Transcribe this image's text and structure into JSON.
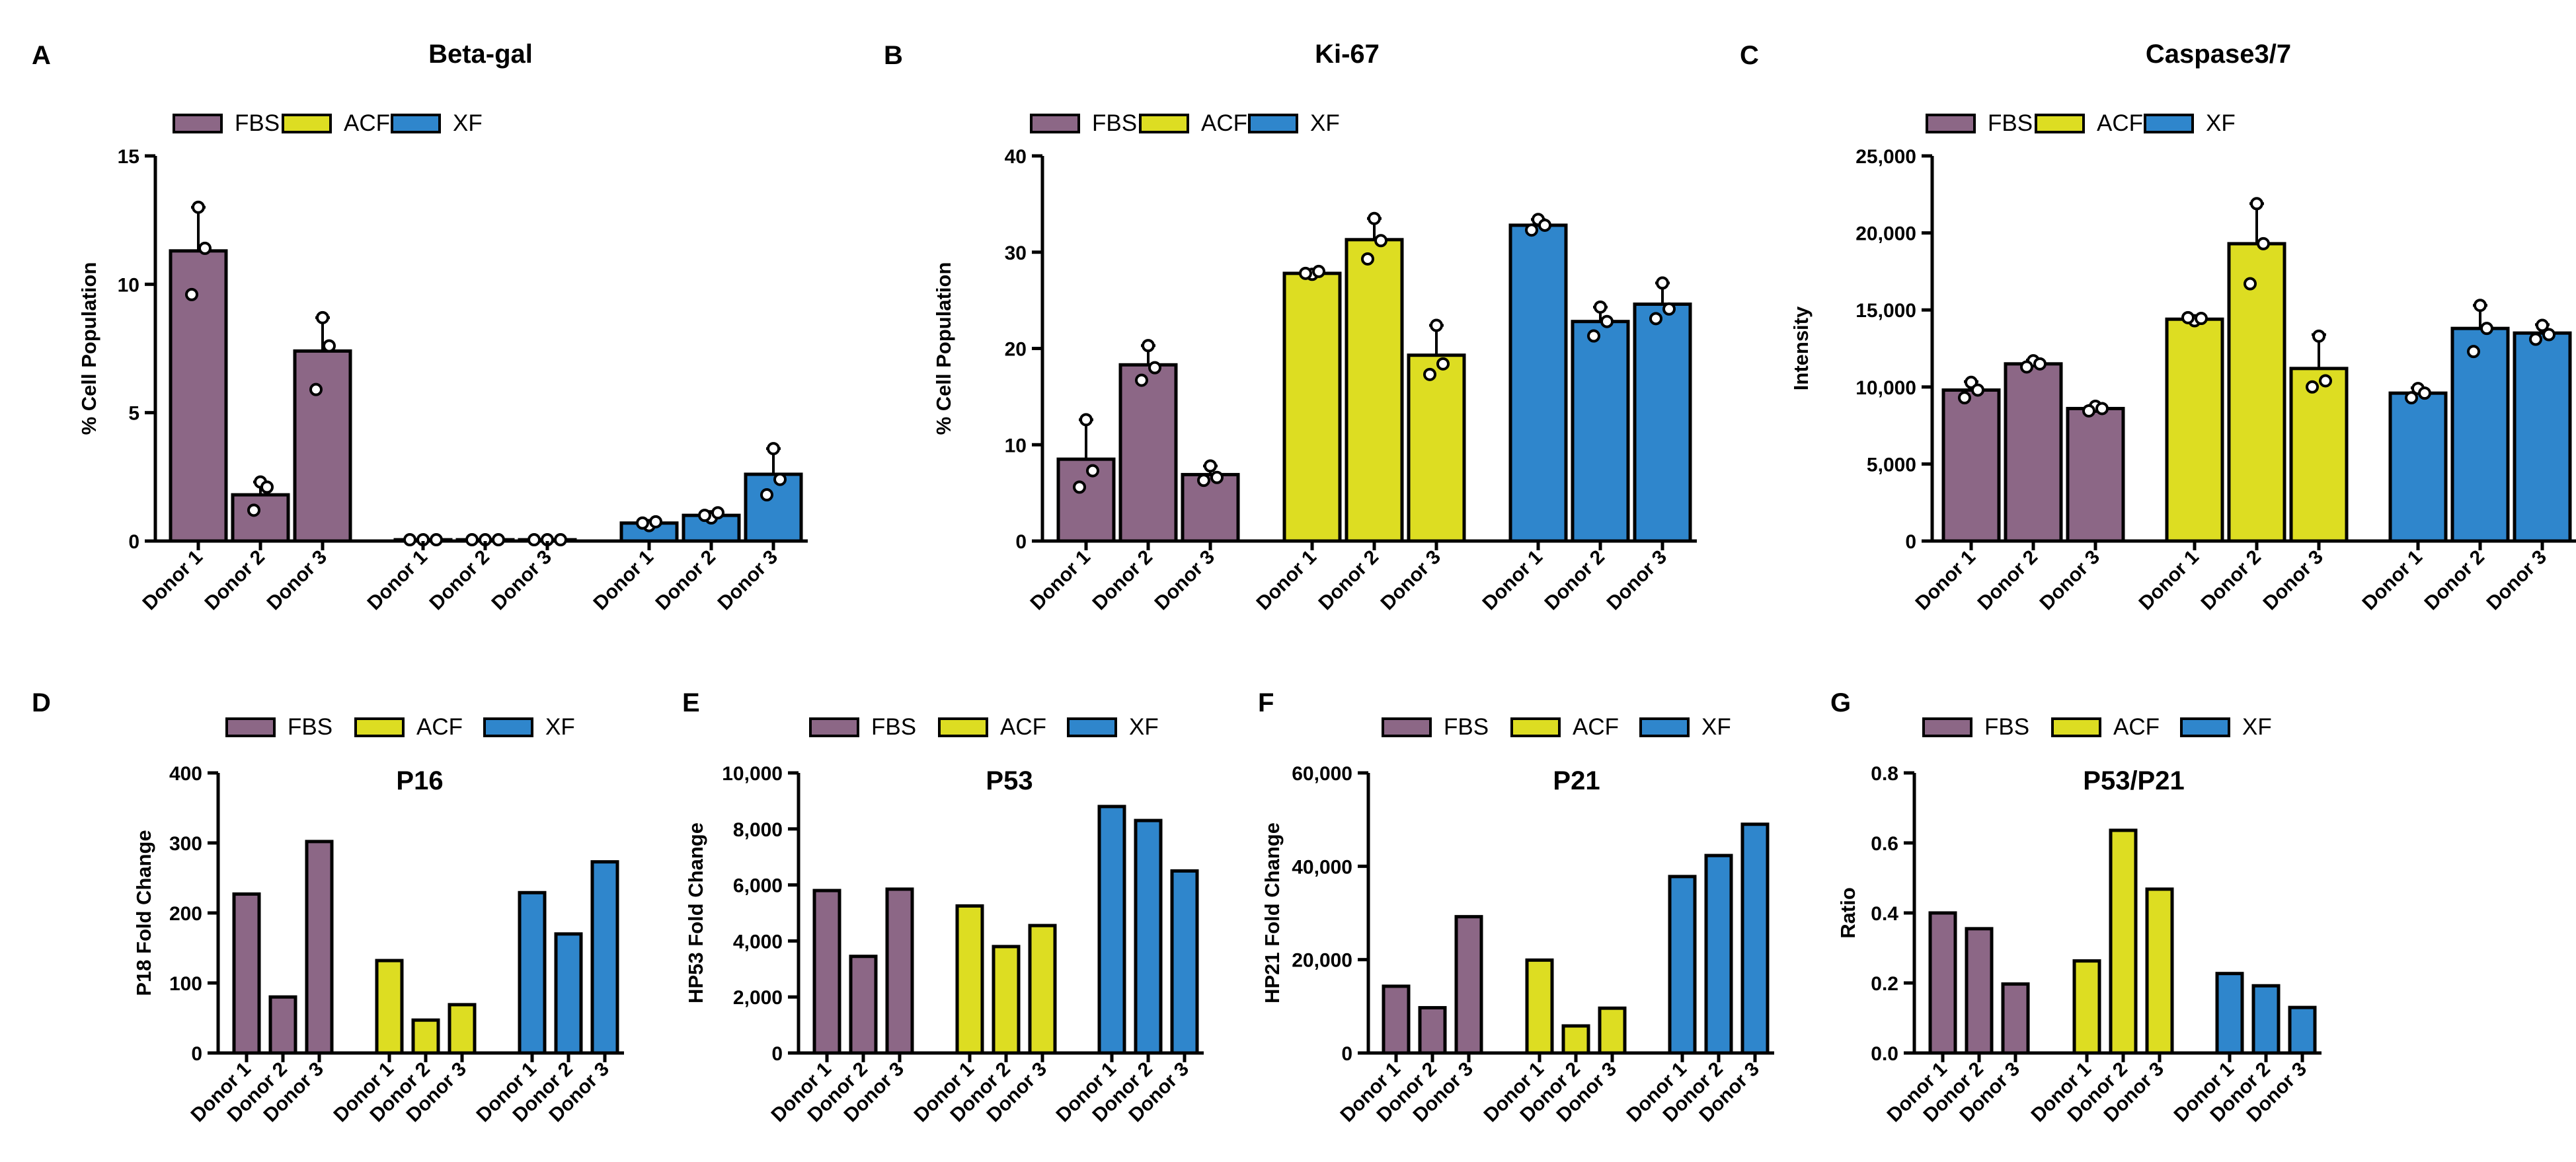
{
  "colors": {
    "FBS": "#8c6786",
    "ACF": "#dddd22",
    "XF": "#2f86cc"
  },
  "chart_data": [
    {
      "panel": "A",
      "type": "bar",
      "title": "Beta-gal",
      "xlabel": "",
      "ylabel": "% Cell Population",
      "legend": [
        "FBS",
        "ACF",
        "XF"
      ],
      "legend_position": "top-left",
      "categories": [
        "Donor 1",
        "Donor 2",
        "Donor 3"
      ],
      "ylim": [
        0,
        15
      ],
      "yticks": [
        0,
        5,
        10,
        15
      ],
      "ytick_labels": [
        "0",
        "5",
        "10",
        "15"
      ],
      "error_bars": true,
      "series": [
        {
          "name": "FBS",
          "values": [
            11.3,
            1.8,
            7.4
          ],
          "errors": [
            1.7,
            0.5,
            1.3
          ],
          "points": [
            [
              13.0,
              9.6,
              11.4
            ],
            [
              2.3,
              1.2,
              2.1
            ],
            [
              8.7,
              5.9,
              7.6
            ]
          ]
        },
        {
          "name": "ACF",
          "values": [
            0.05,
            0.05,
            0.05
          ],
          "errors": [
            0,
            0,
            0
          ],
          "points": [
            [
              0.05,
              0.05,
              0.05
            ],
            [
              0.05,
              0.05,
              0.05
            ],
            [
              0.05,
              0.05,
              0.05
            ]
          ]
        },
        {
          "name": "XF",
          "values": [
            0.7,
            1.0,
            2.6
          ],
          "errors": [
            0.1,
            0.15,
            1.0
          ],
          "points": [
            [
              0.6,
              0.7,
              0.75
            ],
            [
              0.9,
              1.0,
              1.1
            ],
            [
              3.6,
              1.8,
              2.4
            ]
          ]
        }
      ]
    },
    {
      "panel": "B",
      "type": "bar",
      "title": "Ki-67",
      "xlabel": "",
      "ylabel": "% Cell Population",
      "legend": [
        "FBS",
        "ACF",
        "XF"
      ],
      "legend_position": "top-left",
      "categories": [
        "Donor 1",
        "Donor 2",
        "Donor 3"
      ],
      "ylim": [
        0,
        40
      ],
      "yticks": [
        0,
        10,
        20,
        30,
        40
      ],
      "ytick_labels": [
        "0",
        "10",
        "20",
        "30",
        "40"
      ],
      "error_bars": true,
      "series": [
        {
          "name": "FBS",
          "values": [
            8.5,
            18.3,
            6.9
          ],
          "errors": [
            4.1,
            2.0,
            0.9
          ],
          "points": [
            [
              12.6,
              5.6,
              7.3
            ],
            [
              20.3,
              16.7,
              18.0
            ],
            [
              7.8,
              6.3,
              6.6
            ]
          ]
        },
        {
          "name": "ACF",
          "values": [
            27.8,
            31.3,
            19.3
          ],
          "errors": [
            0.3,
            2.2,
            3.1
          ],
          "points": [
            [
              27.7,
              27.8,
              28.0
            ],
            [
              33.5,
              29.3,
              31.2
            ],
            [
              22.4,
              17.3,
              18.4
            ]
          ]
        },
        {
          "name": "XF",
          "values": [
            32.8,
            22.8,
            24.6
          ],
          "errors": [
            0.6,
            1.5,
            2.2
          ],
          "points": [
            [
              33.4,
              32.3,
              32.8
            ],
            [
              24.3,
              21.3,
              22.8
            ],
            [
              26.8,
              23.1,
              24.1
            ]
          ]
        }
      ]
    },
    {
      "panel": "C",
      "type": "bar",
      "title": "Caspase3/7",
      "xlabel": "",
      "ylabel": "Intensity",
      "legend": [
        "FBS",
        "ACF",
        "XF"
      ],
      "legend_position": "top-left",
      "categories": [
        "Donor 1",
        "Donor 2",
        "Donor 3"
      ],
      "ylim": [
        0,
        25000
      ],
      "yticks": [
        0,
        5000,
        10000,
        15000,
        20000,
        25000
      ],
      "ytick_labels": [
        "0",
        "5,000",
        "10,000",
        "15,000",
        "20,000",
        "25,000"
      ],
      "error_bars": true,
      "series": [
        {
          "name": "FBS",
          "values": [
            9800,
            11500,
            8600
          ],
          "errors": [
            550,
            250,
            200
          ],
          "points": [
            [
              10300,
              9300,
              9800
            ],
            [
              11700,
              11300,
              11500
            ],
            [
              8750,
              8450,
              8600
            ]
          ]
        },
        {
          "name": "ACF",
          "values": [
            14400,
            19300,
            11200
          ],
          "errors": [
            150,
            2600,
            2200
          ],
          "points": [
            [
              14300,
              14500,
              14450
            ],
            [
              21900,
              16700,
              19300
            ],
            [
              13300,
              10000,
              10400
            ]
          ]
        },
        {
          "name": "XF",
          "values": [
            9600,
            13800,
            13500
          ],
          "errors": [
            350,
            1500,
            550
          ],
          "points": [
            [
              9900,
              9300,
              9600
            ],
            [
              15300,
              12300,
              13800
            ],
            [
              14000,
              13100,
              13400
            ]
          ]
        }
      ]
    },
    {
      "panel": "D",
      "type": "bar",
      "title": "P16",
      "xlabel": "",
      "ylabel": "P18 Fold Change",
      "legend": [
        "FBS",
        "ACF",
        "XF"
      ],
      "legend_position": "top",
      "categories": [
        "Donor 1",
        "Donor 2",
        "Donor 3"
      ],
      "ylim": [
        0,
        400
      ],
      "yticks": [
        0,
        100,
        200,
        300,
        400
      ],
      "ytick_labels": [
        "0",
        "100",
        "200",
        "300",
        "400"
      ],
      "error_bars": false,
      "series": [
        {
          "name": "FBS",
          "values": [
            227,
            80,
            302
          ]
        },
        {
          "name": "ACF",
          "values": [
            132,
            47,
            69
          ]
        },
        {
          "name": "XF",
          "values": [
            229,
            170,
            273
          ]
        }
      ]
    },
    {
      "panel": "E",
      "type": "bar",
      "title": "P53",
      "xlabel": "",
      "ylabel": "HP53 Fold Change",
      "legend": [
        "FBS",
        "ACF",
        "XF"
      ],
      "legend_position": "top",
      "categories": [
        "Donor 1",
        "Donor 2",
        "Donor 3"
      ],
      "ylim": [
        0,
        10000
      ],
      "yticks": [
        0,
        2000,
        4000,
        6000,
        8000,
        10000
      ],
      "ytick_labels": [
        "0",
        "2,000",
        "4,000",
        "6,000",
        "8,000",
        "10,000"
      ],
      "error_bars": false,
      "series": [
        {
          "name": "FBS",
          "values": [
            5800,
            3450,
            5850
          ]
        },
        {
          "name": "ACF",
          "values": [
            5250,
            3800,
            4550
          ]
        },
        {
          "name": "XF",
          "values": [
            8800,
            8300,
            6500
          ]
        }
      ]
    },
    {
      "panel": "F",
      "type": "bar",
      "title": "P21",
      "xlabel": "",
      "ylabel": "HP21 Fold Change",
      "legend": [
        "FBS",
        "ACF",
        "XF"
      ],
      "legend_position": "top",
      "categories": [
        "Donor 1",
        "Donor 2",
        "Donor 3"
      ],
      "ylim": [
        0,
        60000
      ],
      "yticks": [
        0,
        20000,
        40000,
        60000
      ],
      "ytick_labels": [
        "0",
        "20,000",
        "40,000",
        "60,000"
      ],
      "error_bars": false,
      "series": [
        {
          "name": "FBS",
          "values": [
            14300,
            9700,
            29200
          ]
        },
        {
          "name": "ACF",
          "values": [
            19900,
            5800,
            9600
          ]
        },
        {
          "name": "XF",
          "values": [
            37800,
            42300,
            49000
          ]
        }
      ]
    },
    {
      "panel": "G",
      "type": "bar",
      "title": "P53/P21",
      "xlabel": "",
      "ylabel": "Ratio",
      "legend": [
        "FBS",
        "ACF",
        "XF"
      ],
      "legend_position": "top",
      "categories": [
        "Donor 1",
        "Donor 2",
        "Donor 3"
      ],
      "ylim": [
        0,
        0.8
      ],
      "yticks": [
        0,
        0.2,
        0.4,
        0.6,
        0.8
      ],
      "ytick_labels": [
        "0.0",
        "0.2",
        "0.4",
        "0.6",
        "0.8"
      ],
      "error_bars": false,
      "series": [
        {
          "name": "FBS",
          "values": [
            0.4,
            0.355,
            0.197
          ]
        },
        {
          "name": "ACF",
          "values": [
            0.263,
            0.636,
            0.468
          ]
        },
        {
          "name": "XF",
          "values": [
            0.227,
            0.192,
            0.13
          ]
        }
      ]
    }
  ]
}
